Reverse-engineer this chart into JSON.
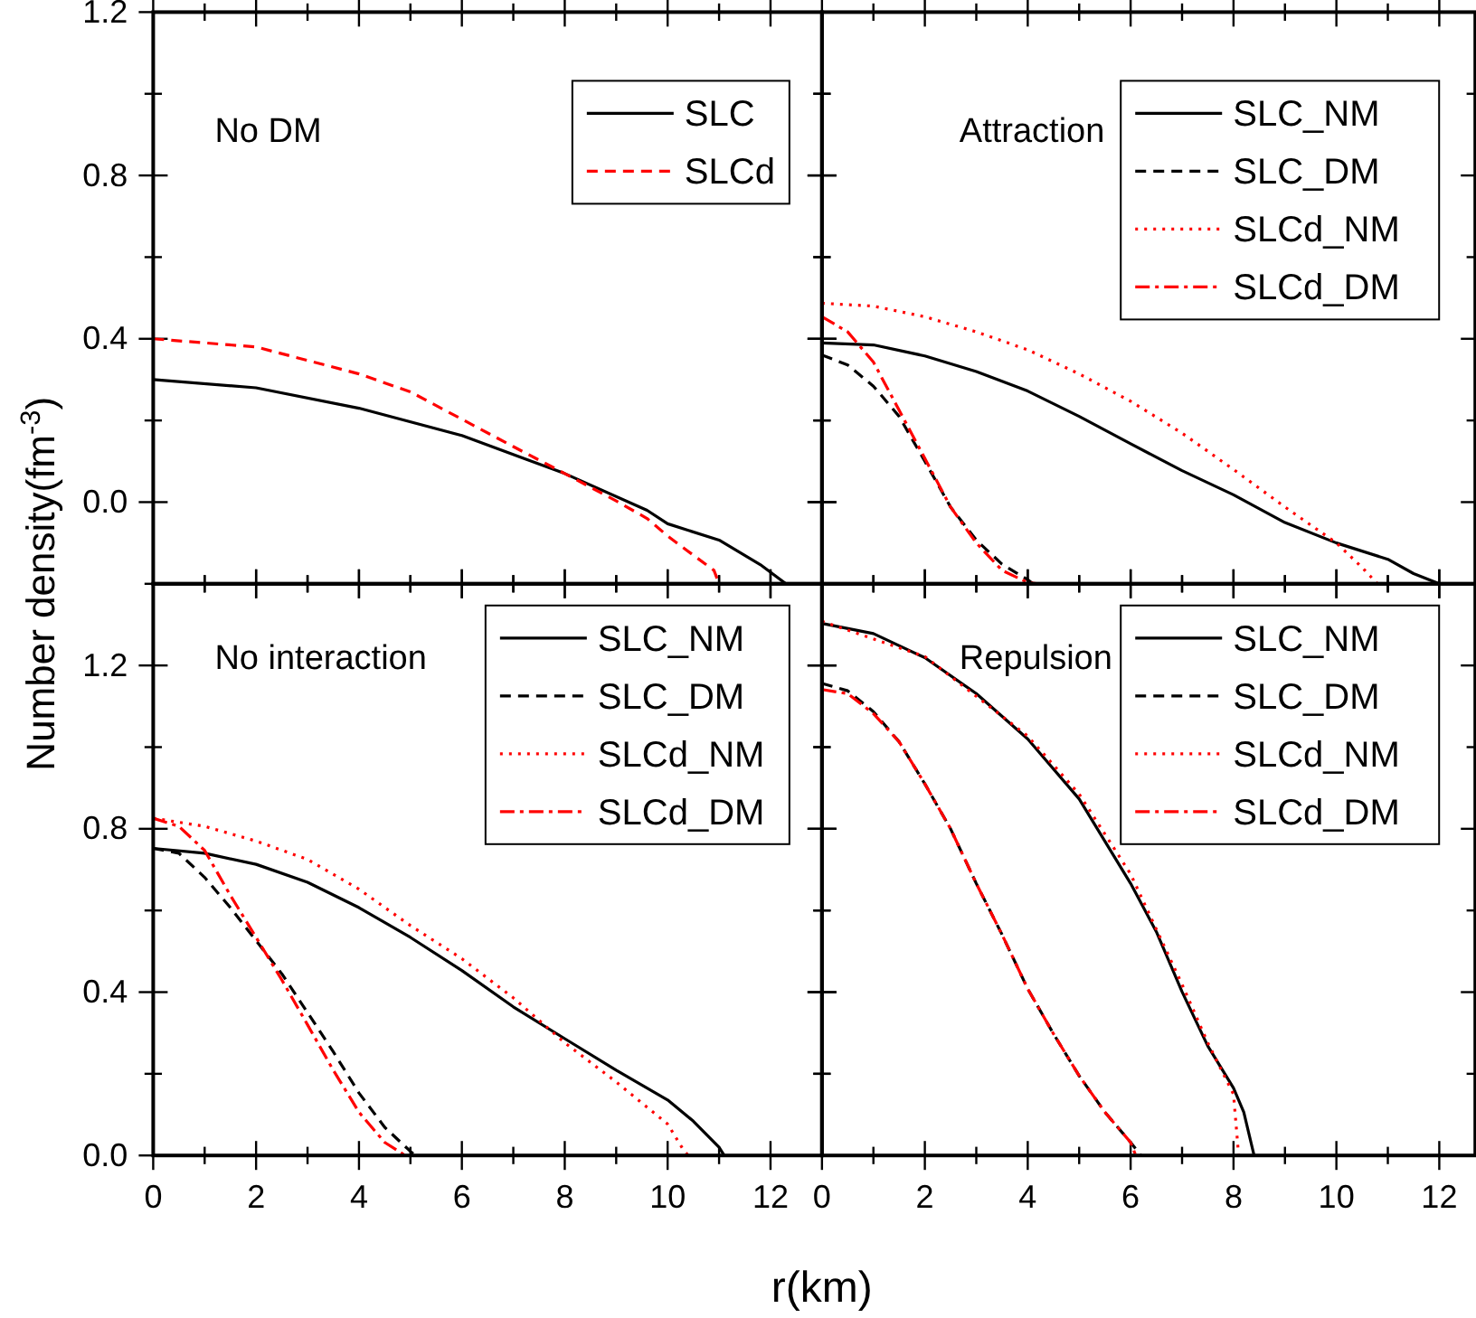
{
  "chart_data": [
    {
      "type": "line",
      "ylabel": "Number density(fm$^{-3}$)",
      "annotations": [
        "No DM"
      ],
      "xlim": [
        0,
        13
      ],
      "ylim": [
        -0.2,
        1.2
      ],
      "xticks": [
        0,
        {
          "value": 1,
          "label": null
        },
        2,
        {
          "value": 3,
          "label": null
        },
        4,
        {
          "value": 5,
          "label": null
        },
        6,
        {
          "value": 7,
          "label": null
        },
        8,
        {
          "value": 9,
          "label": null
        },
        10,
        {
          "value": 11,
          "label": null
        },
        12
      ],
      "yticks": [
        {
          "value": -0.2,
          "label": null
        },
        {
          "value": 0,
          "label": "0.0"
        },
        {
          "value": 0.2,
          "label": null
        },
        0.4,
        {
          "value": 0.6,
          "label": null
        },
        0.8,
        {
          "value": 1.0,
          "label": null
        },
        1.2
      ],
      "tick_labels": "y",
      "legend": "top right",
      "marker": "none",
      "series": [
        {
          "name": "SLC",
          "color": "#000000",
          "line_style": "solid",
          "x": [
            0,
            2,
            4,
            6,
            8,
            9.6,
            10,
            11,
            11.8,
            12.3
          ],
          "values": [
            0.3,
            0.28,
            0.23,
            0.163,
            0.07,
            -0.02,
            -0.053,
            -0.093,
            -0.153,
            -0.2
          ]
        },
        {
          "name": "SLCd",
          "color": "#ff0000",
          "line_style": "dashed",
          "x": [
            0,
            2,
            4,
            5,
            6,
            7,
            8,
            9,
            9.6,
            10,
            10.5,
            10.9,
            11.0
          ],
          "values": [
            0.4,
            0.38,
            0.314,
            0.27,
            0.203,
            0.136,
            0.07,
            0.003,
            -0.04,
            -0.083,
            -0.13,
            -0.167,
            -0.2
          ]
        }
      ]
    },
    {
      "type": "line",
      "annotations": [
        "Attraction"
      ],
      "xlim": [
        0,
        12.7
      ],
      "ylim": [
        -0.2,
        1.2
      ],
      "xticks": [
        0,
        {
          "value": 1,
          "label": null
        },
        2,
        {
          "value": 3,
          "label": null
        },
        4,
        {
          "value": 5,
          "label": null
        },
        6,
        {
          "value": 7,
          "label": null
        },
        8,
        {
          "value": 9,
          "label": null
        },
        10,
        {
          "value": 11,
          "label": null
        },
        12
      ],
      "yticks": [
        {
          "value": -0.2,
          "label": null
        },
        0.0,
        {
          "value": 0.2,
          "label": null
        },
        0.4,
        {
          "value": 0.6,
          "label": null
        },
        0.8,
        {
          "value": 1.0,
          "label": null
        },
        1.2
      ],
      "tick_labels": false,
      "legend": "top right",
      "marker": "none",
      "series": [
        {
          "name": "SLC_NM",
          "color": "#000000",
          "line_style": "solid",
          "x": [
            0,
            1,
            2,
            3,
            4,
            5,
            6,
            7,
            8,
            9,
            10,
            11,
            11.5,
            12
          ],
          "values": [
            0.39,
            0.385,
            0.358,
            0.32,
            0.272,
            0.21,
            0.143,
            0.077,
            0.018,
            -0.05,
            -0.1,
            -0.14,
            -0.175,
            -0.2
          ]
        },
        {
          "name": "SLC_DM",
          "color": "#000000",
          "line_style": "dashed",
          "x": [
            0,
            0.5,
            1,
            1.5,
            2,
            2.5,
            3,
            3.5,
            4,
            4.1
          ],
          "values": [
            0.36,
            0.336,
            0.284,
            0.21,
            0.1,
            -0.012,
            -0.093,
            -0.152,
            -0.19,
            -0.2
          ]
        },
        {
          "name": "SLCd_NM",
          "color": "#ff0000",
          "line_style": "dotted",
          "x": [
            0,
            1,
            2,
            3,
            4,
            5,
            6,
            7,
            8,
            9,
            9.5,
            10,
            10.5,
            10.8
          ],
          "values": [
            0.487,
            0.48,
            0.454,
            0.417,
            0.373,
            0.314,
            0.247,
            0.169,
            0.08,
            -0.012,
            -0.056,
            -0.1,
            -0.16,
            -0.2
          ]
        },
        {
          "name": "SLCd_DM",
          "color": "#ff0000",
          "line_style": "dashdot",
          "x": [
            0,
            0.5,
            1,
            1.5,
            2,
            2.5,
            3,
            3.5,
            4,
            4.2
          ],
          "values": [
            0.454,
            0.417,
            0.343,
            0.225,
            0.107,
            -0.012,
            -0.1,
            -0.167,
            -0.197,
            -0.2
          ]
        }
      ]
    },
    {
      "type": "line",
      "xlabel": "r(km)",
      "annotations": [
        "No interaction"
      ],
      "xlim": [
        0,
        13
      ],
      "ylim": [
        0,
        1.4
      ],
      "xticks": [
        0,
        {
          "value": 1,
          "label": null
        },
        2,
        {
          "value": 3,
          "label": null
        },
        4,
        {
          "value": 5,
          "label": null
        },
        6,
        {
          "value": 7,
          "label": null
        },
        8,
        {
          "value": 9,
          "label": null
        },
        10,
        {
          "value": 11,
          "label": null
        },
        12
      ],
      "yticks": [
        {
          "value": 0,
          "label": "0.0"
        },
        {
          "value": 0.2,
          "label": null
        },
        0.4,
        {
          "value": 0.6,
          "label": null
        },
        0.8,
        {
          "value": 1.0,
          "label": null
        },
        1.2
      ],
      "legend": "top right",
      "marker": "none",
      "series": [
        {
          "name": "SLC_NM",
          "color": "#000000",
          "line_style": "solid",
          "x": [
            0,
            1,
            2,
            3,
            4,
            5,
            6,
            7,
            8,
            9,
            10,
            10.5,
            11,
            11.1
          ],
          "values": [
            0.752,
            0.74,
            0.713,
            0.669,
            0.607,
            0.534,
            0.453,
            0.364,
            0.286,
            0.209,
            0.136,
            0.084,
            0.02,
            0
          ]
        },
        {
          "name": "SLC_DM",
          "color": "#000000",
          "line_style": "dashed",
          "x": [
            0,
            0.5,
            1,
            1.5,
            2,
            2.5,
            3,
            3.5,
            4,
            4.5,
            5,
            5.1
          ],
          "values": [
            0.752,
            0.74,
            0.681,
            0.607,
            0.526,
            0.445,
            0.35,
            0.254,
            0.153,
            0.069,
            0.01,
            0
          ]
        },
        {
          "name": "SLCd_NM",
          "color": "#ff0000",
          "line_style": "dotted",
          "x": [
            0,
            1,
            2,
            3,
            4,
            5,
            6,
            7,
            8,
            9,
            10,
            10.3,
            10.4
          ],
          "values": [
            0.826,
            0.806,
            0.77,
            0.725,
            0.652,
            0.563,
            0.482,
            0.386,
            0.276,
            0.18,
            0.077,
            0.015,
            0
          ]
        },
        {
          "name": "SLCd_DM",
          "color": "#ff0000",
          "line_style": "dashdot",
          "x": [
            0,
            0.5,
            1,
            1.5,
            2,
            2.5,
            3,
            3.5,
            4,
            4.5,
            4.9
          ],
          "values": [
            0.826,
            0.806,
            0.747,
            0.637,
            0.534,
            0.43,
            0.32,
            0.209,
            0.106,
            0.032,
            0
          ]
        }
      ]
    },
    {
      "type": "line",
      "annotations": [
        "Repulsion"
      ],
      "xlim": [
        0,
        12.7
      ],
      "ylim": [
        0,
        1.4
      ],
      "xticks": [
        0,
        {
          "value": 1,
          "label": null
        },
        2,
        {
          "value": 3,
          "label": null
        },
        4,
        {
          "value": 5,
          "label": null
        },
        6,
        {
          "value": 7,
          "label": null
        },
        8,
        {
          "value": 9,
          "label": null
        },
        10,
        {
          "value": 11,
          "label": null
        },
        12
      ],
      "yticks": [
        0.0,
        {
          "value": 0.2,
          "label": null
        },
        0.4,
        {
          "value": 0.6,
          "label": null
        },
        0.8,
        {
          "value": 1.0,
          "label": null
        },
        1.2
      ],
      "tick_labels": "x",
      "legend": "top right",
      "marker": "none",
      "series": [
        {
          "name": "SLC_NM",
          "color": "#000000",
          "line_style": "solid",
          "x": [
            0,
            1,
            2,
            3,
            4,
            5,
            6,
            6.5,
            7,
            7.5,
            8,
            8.2,
            8.4
          ],
          "values": [
            1.303,
            1.278,
            1.219,
            1.131,
            1.02,
            0.873,
            0.666,
            0.548,
            0.401,
            0.268,
            0.165,
            0.106,
            0
          ]
        },
        {
          "name": "SLC_DM",
          "color": "#000000",
          "line_style": "dashed",
          "x": [
            0,
            0.5,
            1,
            1.5,
            2,
            2.5,
            3,
            3.5,
            4,
            4.5,
            5,
            5.5,
            6,
            6.2
          ],
          "values": [
            1.156,
            1.138,
            1.087,
            1.013,
            0.91,
            0.8,
            0.666,
            0.541,
            0.408,
            0.298,
            0.195,
            0.106,
            0.032,
            0
          ]
        },
        {
          "name": "SLCd_NM",
          "color": "#ff0000",
          "line_style": "dotted",
          "x": [
            0,
            2,
            4,
            5,
            6,
            7,
            7.5,
            8,
            8.1
          ],
          "values": [
            1.308,
            1.222,
            1.027,
            0.885,
            0.689,
            0.419,
            0.276,
            0.15,
            0
          ]
        },
        {
          "name": "SLCd_DM",
          "color": "#ff0000",
          "line_style": "dashdot",
          "x": [
            0,
            0.5,
            1,
            1.5,
            2,
            2.5,
            3,
            3.5,
            4,
            4.5,
            5,
            5.5,
            6,
            6.1
          ],
          "values": [
            1.141,
            1.131,
            1.082,
            1.013,
            0.91,
            0.8,
            0.666,
            0.541,
            0.408,
            0.298,
            0.195,
            0.106,
            0.032,
            0
          ]
        }
      ]
    }
  ]
}
